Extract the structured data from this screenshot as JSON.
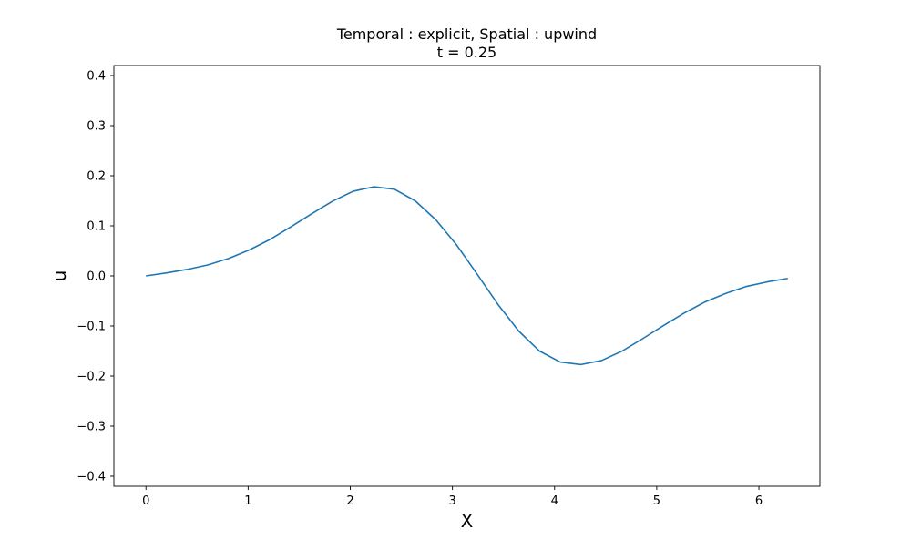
{
  "chart_data": {
    "type": "line",
    "title": "Temporal : explicit, Spatial : upwind",
    "subtitle": "t = 0.25",
    "xlabel": "X",
    "ylabel": "u",
    "xlim": [
      -0.314,
      6.597
    ],
    "ylim": [
      -0.42,
      0.42
    ],
    "xticks": [
      0,
      1,
      2,
      3,
      4,
      5,
      6
    ],
    "xtick_labels": [
      "0",
      "1",
      "2",
      "3",
      "4",
      "5",
      "6"
    ],
    "yticks": [
      0.4,
      0.3,
      0.2,
      0.1,
      0.0,
      -0.1,
      -0.2,
      -0.3,
      -0.4
    ],
    "ytick_labels": [
      "0.4",
      "0.3",
      "0.2",
      "0.1",
      "0.0",
      "−0.1",
      "−0.2",
      "−0.3",
      "−0.4"
    ],
    "grid": false,
    "colors": {
      "line": "#1f77b4",
      "axes": "#000000",
      "background": "#ffffff"
    },
    "series": [
      {
        "x": [
          0.0,
          0.2027,
          0.4054,
          0.6081,
          0.8108,
          1.0135,
          1.2162,
          1.4189,
          1.6216,
          1.8243,
          2.027,
          2.2297,
          2.4324,
          2.6351,
          2.8378,
          3.0405,
          3.2432,
          3.4459,
          3.6486,
          3.8513,
          4.054,
          4.2567,
          4.4594,
          4.6621,
          4.8648,
          5.0675,
          5.2702,
          5.4729,
          5.6756,
          5.8783,
          6.081,
          6.2832
        ],
        "values": [
          0.0,
          0.006,
          0.013,
          0.022,
          0.035,
          0.052,
          0.073,
          0.098,
          0.124,
          0.149,
          0.169,
          0.178,
          0.173,
          0.15,
          0.112,
          0.062,
          0.003,
          -0.057,
          -0.11,
          -0.15,
          -0.172,
          -0.177,
          -0.169,
          -0.15,
          -0.125,
          -0.099,
          -0.074,
          -0.052,
          -0.035,
          -0.021,
          -0.012,
          -0.005
        ]
      }
    ]
  }
}
